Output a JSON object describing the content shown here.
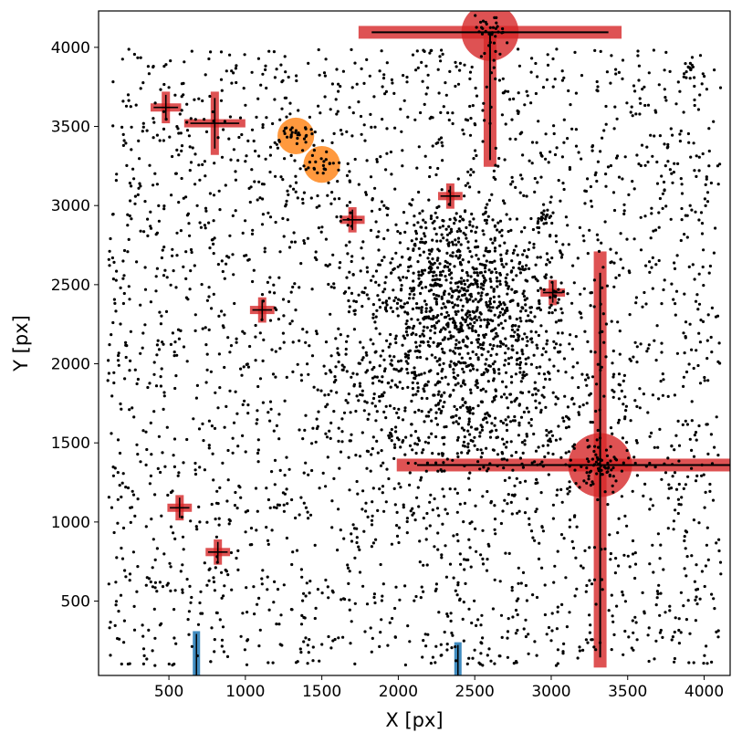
{
  "chart_data": {
    "type": "scatter",
    "xlabel": "X [px]",
    "ylabel": "Y [px]",
    "xlim": [
      40,
      4170
    ],
    "ylim": [
      30,
      4230
    ],
    "xticks": [
      500,
      1000,
      1500,
      2000,
      2500,
      3000,
      3500,
      4000
    ],
    "yticks": [
      500,
      1000,
      1500,
      2000,
      2500,
      3000,
      3500,
      4000
    ],
    "grid": false,
    "colors": {
      "points": "#000000",
      "saturated_star": "#d62728",
      "extended_source": "#ff7f0e",
      "column_defect": "#1f77b4"
    },
    "saturated_stars": [
      {
        "x": 2600,
        "y": 4095,
        "halo_radius": 85,
        "h_arm": 860,
        "v_down": 850,
        "v_up": 0
      },
      {
        "x": 3320,
        "y": 1360,
        "halo_radius": 95,
        "h_arm": 1330,
        "v_down": 1280,
        "v_up": 1350
      },
      {
        "x": 480,
        "y": 3620,
        "halo_radius": 0,
        "h_arm": 100,
        "v_down": 100,
        "v_up": 100
      },
      {
        "x": 800,
        "y": 3520,
        "halo_radius": 0,
        "h_arm": 200,
        "v_down": 200,
        "v_up": 200
      },
      {
        "x": 1110,
        "y": 2340,
        "halo_radius": 0,
        "h_arm": 80,
        "v_down": 80,
        "v_up": 80
      },
      {
        "x": 1700,
        "y": 2910,
        "halo_radius": 0,
        "h_arm": 80,
        "v_down": 80,
        "v_up": 80
      },
      {
        "x": 2340,
        "y": 3060,
        "halo_radius": 0,
        "h_arm": 80,
        "v_down": 80,
        "v_up": 80
      },
      {
        "x": 3010,
        "y": 2450,
        "halo_radius": 0,
        "h_arm": 80,
        "v_down": 80,
        "v_up": 80
      },
      {
        "x": 570,
        "y": 1090,
        "halo_radius": 0,
        "h_arm": 80,
        "v_down": 80,
        "v_up": 80
      },
      {
        "x": 820,
        "y": 810,
        "halo_radius": 0,
        "h_arm": 80,
        "v_down": 80,
        "v_up": 80
      }
    ],
    "extended_sources": [
      {
        "x": 1330,
        "y": 3440,
        "radius": 120
      },
      {
        "x": 1500,
        "y": 3260,
        "radius": 120
      }
    ],
    "column_defects": [
      {
        "x": 680,
        "y_min": 30,
        "y_max": 310
      },
      {
        "x": 2390,
        "y_min": 30,
        "y_max": 240
      }
    ],
    "clusters": [
      {
        "x": 2400,
        "y": 2450,
        "r": 500,
        "n": 700
      },
      {
        "x": 2400,
        "y": 1900,
        "r": 700,
        "n": 600
      },
      {
        "x": 3320,
        "y": 1360,
        "r": 90,
        "n": 40
      },
      {
        "x": 2600,
        "y": 4095,
        "r": 80,
        "n": 30
      },
      {
        "x": 1330,
        "y": 3440,
        "r": 80,
        "n": 20
      },
      {
        "x": 1500,
        "y": 3260,
        "r": 80,
        "n": 20
      },
      {
        "x": 2960,
        "y": 2930,
        "r": 50,
        "n": 18
      },
      {
        "x": 3900,
        "y": 3870,
        "r": 40,
        "n": 14
      }
    ],
    "background_points": 2700
  }
}
